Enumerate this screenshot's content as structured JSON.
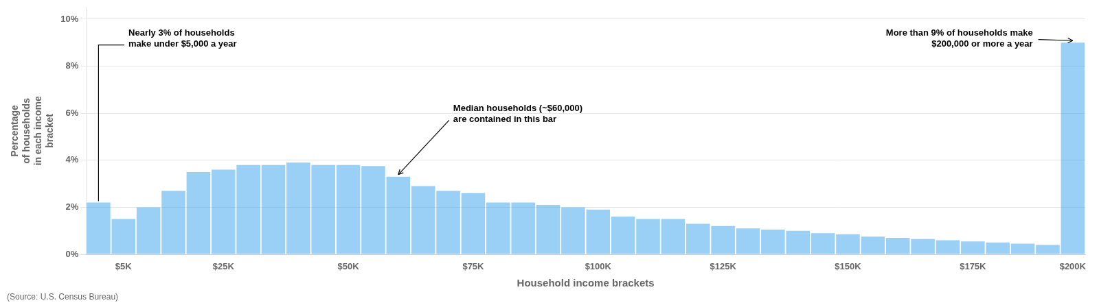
{
  "chart_data": {
    "type": "bar",
    "categories": [
      null,
      "$5K",
      null,
      null,
      null,
      "$25K",
      null,
      null,
      null,
      null,
      "$50K",
      null,
      null,
      null,
      null,
      "$75K",
      null,
      null,
      null,
      null,
      "$100K",
      null,
      null,
      null,
      null,
      "$125K",
      null,
      null,
      null,
      null,
      "$150K",
      null,
      null,
      null,
      null,
      "$175K",
      null,
      null,
      null,
      "$200K"
    ],
    "values": [
      2.2,
      1.5,
      2.0,
      2.7,
      3.5,
      3.6,
      3.8,
      3.8,
      3.9,
      3.8,
      3.8,
      3.75,
      3.3,
      2.9,
      2.7,
      2.6,
      2.2,
      2.2,
      2.1,
      2.0,
      1.9,
      1.6,
      1.5,
      1.5,
      1.3,
      1.2,
      1.1,
      1.05,
      1.0,
      0.9,
      0.85,
      0.75,
      0.7,
      0.65,
      0.6,
      0.55,
      0.5,
      0.45,
      0.4,
      9.0
    ],
    "ylim": [
      0,
      10.5
    ],
    "yticks": [
      {
        "value": 0,
        "label": "0%"
      },
      {
        "value": 2,
        "label": "2%"
      },
      {
        "value": 4,
        "label": "4%"
      },
      {
        "value": 6,
        "label": "6%"
      },
      {
        "value": 8,
        "label": "8%"
      },
      {
        "value": 10,
        "label": "10%"
      }
    ],
    "ylabel": "Percentage\nof households\nin each income\nbracket",
    "xlabel": "Household income brackets",
    "source": "(Source: U.S. Census Bureau)",
    "annotations": [
      "Nearly 3% of households\nmake under $5,000 a year",
      "More than 9% of households make\n$200,000 or more a year",
      "Median households (~$60,000)\nare contained in this bar"
    ],
    "grid": true
  }
}
